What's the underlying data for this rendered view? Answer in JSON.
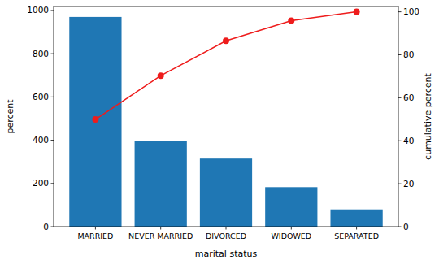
{
  "chart_data": {
    "type": "bar",
    "x_label": "marital status",
    "y_label": "percent",
    "y2_label": "cumulative percent",
    "categories": [
      "MARRIED",
      "NEVER MARRIED",
      "DIVORCED",
      "WIDOWED",
      "SEPARATED"
    ],
    "series": [
      {
        "type": "bar",
        "color": "#1f77b4",
        "values": [
          970,
          395,
          315,
          183,
          80
        ]
      },
      {
        "type": "line",
        "color": "#ee1c1c",
        "marker": "circle",
        "axis": "y2",
        "values": [
          49.9,
          70.3,
          86.5,
          95.9,
          100
        ]
      }
    ],
    "ylim": [
      0,
      1018.5
    ],
    "yticks": [
      0,
      200,
      400,
      600,
      800,
      1000
    ],
    "y2lim": [
      0,
      102.5
    ],
    "y2ticks": [
      0,
      20,
      40,
      60,
      80,
      100
    ],
    "grid": false
  }
}
